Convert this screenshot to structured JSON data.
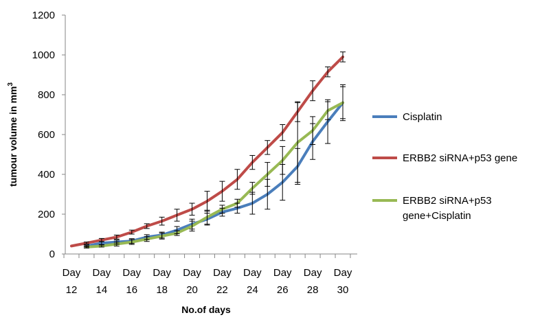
{
  "chart_data": {
    "type": "line",
    "title": "",
    "xlabel": "No.of days",
    "ylabel": "tumour volume in mm",
    "ylabel_superscript": "3",
    "ylim": [
      0,
      1200
    ],
    "yticks": [
      0,
      200,
      400,
      600,
      800,
      1000,
      1200
    ],
    "x": [
      12,
      13,
      14,
      15,
      16,
      17,
      18,
      19,
      20,
      21,
      22,
      23,
      24,
      25,
      26,
      27,
      28,
      29,
      30
    ],
    "xtick_labels": [
      {
        "day": 12,
        "line1": "Day",
        "line2": "12"
      },
      {
        "day": 14,
        "line1": "Day",
        "line2": "14"
      },
      {
        "day": 16,
        "line1": "Day",
        "line2": "16"
      },
      {
        "day": 18,
        "line1": "Day",
        "line2": "18"
      },
      {
        "day": 20,
        "line1": "Day",
        "line2": "20"
      },
      {
        "day": 22,
        "line1": "Day",
        "line2": "22"
      },
      {
        "day": 24,
        "line1": "Day",
        "line2": "24"
      },
      {
        "day": 26,
        "line1": "Day",
        "line2": "26"
      },
      {
        "day": 28,
        "line1": "Day",
        "line2": "28"
      },
      {
        "day": 30,
        "line1": "Day",
        "line2": "30"
      }
    ],
    "grid": false,
    "legend_position": "right",
    "series": [
      {
        "name": "Cisplatin",
        "color": "#4a7ebb",
        "values": [
          null,
          40,
          55,
          60,
          65,
          85,
          95,
          120,
          150,
          175,
          210,
          230,
          255,
          300,
          360,
          440,
          565,
          665,
          760
        ],
        "errors": [
          null,
          5,
          8,
          10,
          12,
          12,
          15,
          18,
          25,
          30,
          20,
          25,
          55,
          75,
          90,
          90,
          90,
          110,
          80
        ]
      },
      {
        "name": "ERBB2 siRNA+p53 gene",
        "color": "#be4b48",
        "values": [
          40,
          55,
          70,
          85,
          110,
          140,
          165,
          195,
          225,
          265,
          315,
          375,
          460,
          535,
          610,
          715,
          820,
          915,
          990
        ],
        "errors": [
          null,
          5,
          8,
          10,
          10,
          12,
          20,
          30,
          30,
          50,
          50,
          50,
          35,
          35,
          40,
          50,
          50,
          25,
          25
        ]
      },
      {
        "name": "ERBB2 siRNA+p53 gene+Cisplatin",
        "legend_lines": [
          "ERBB2 siRNA+p53",
          "gene+Cisplatin"
        ],
        "color": "#98b954",
        "values": [
          null,
          35,
          40,
          50,
          60,
          75,
          90,
          105,
          140,
          185,
          225,
          255,
          330,
          400,
          470,
          560,
          620,
          720,
          760
        ],
        "errors": [
          null,
          5,
          5,
          10,
          12,
          12,
          15,
          12,
          25,
          35,
          20,
          20,
          30,
          60,
          70,
          200,
          70,
          45,
          90
        ]
      }
    ]
  }
}
